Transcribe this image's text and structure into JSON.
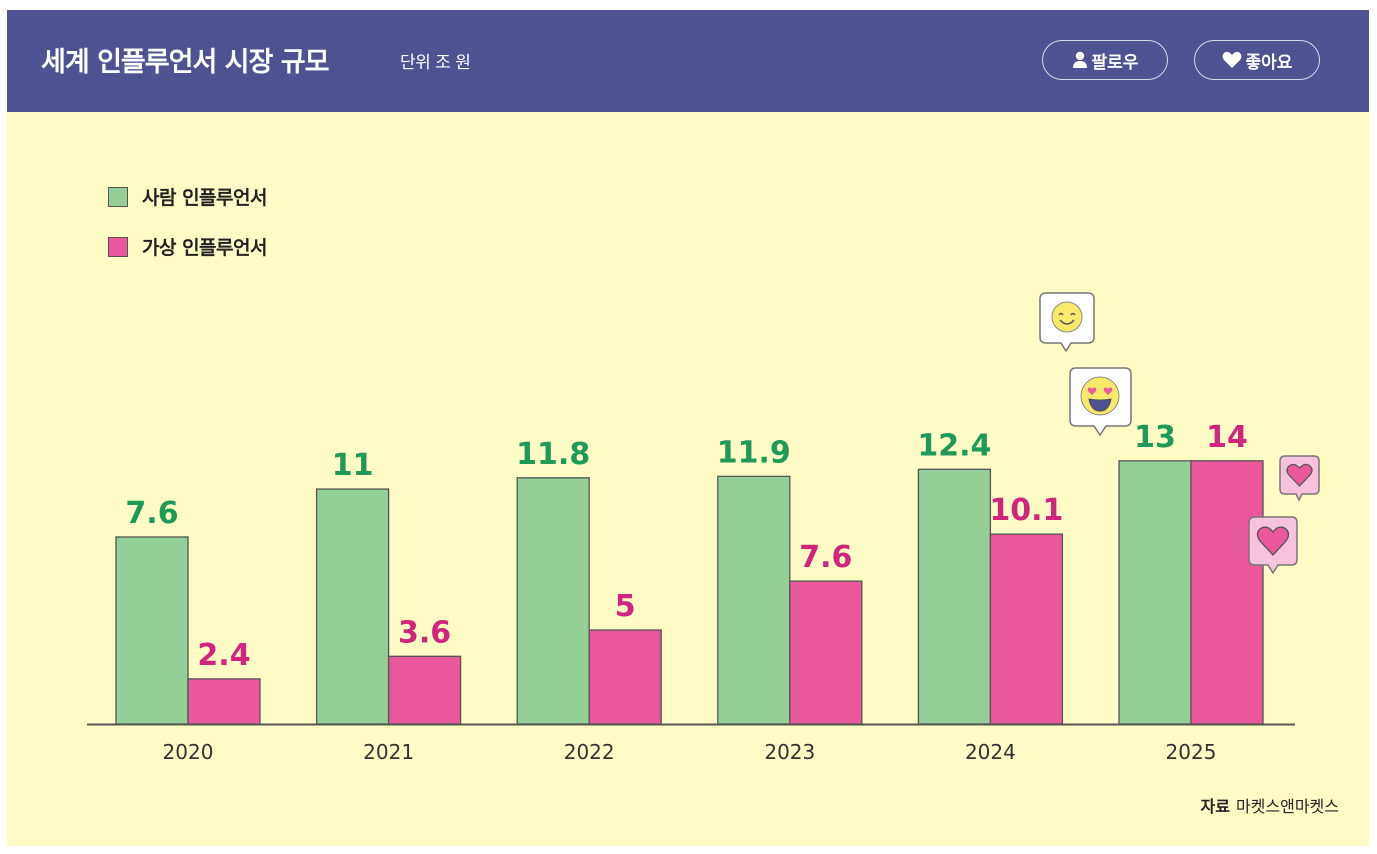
{
  "header": {
    "title": "세계 인플루언서 시장 규모",
    "unit": "단위 조 원",
    "follow_button": {
      "label": "팔로우",
      "icon": "person-icon"
    },
    "like_button": {
      "label": "좋아요",
      "icon": "heart-icon"
    }
  },
  "colors": {
    "header_bg": "#4e5192",
    "body_bg": "#fffbc5",
    "human_bar": "#94cf98",
    "virtual_bar": "#e9589b",
    "human_label": "#1d9a55",
    "virtual_label": "#d1247e",
    "axis": "#555555"
  },
  "source": {
    "label": "자료",
    "value": "마켓스앤마켓스"
  },
  "decorations": [
    "smile-emoji-bubble",
    "heart-eyes-emoji-bubble",
    "small-heart-bubble",
    "large-heart-bubble"
  ],
  "chart_data": {
    "type": "bar",
    "title": "세계 인플루언서 시장 규모",
    "subtitle": "단위 조 원",
    "xlabel": "",
    "ylabel": "",
    "categories": [
      "2020",
      "2021",
      "2022",
      "2023",
      "2024",
      "2025"
    ],
    "series": [
      {
        "name": "사람 인플루언서",
        "values": [
          7.6,
          11,
          11.8,
          11.9,
          12.4,
          13
        ]
      },
      {
        "name": "가상 인플루언서",
        "values": [
          2.4,
          3.6,
          5,
          7.6,
          10.1,
          14
        ]
      }
    ],
    "grid": false,
    "legend_position": "top-left",
    "data_labels": true
  }
}
